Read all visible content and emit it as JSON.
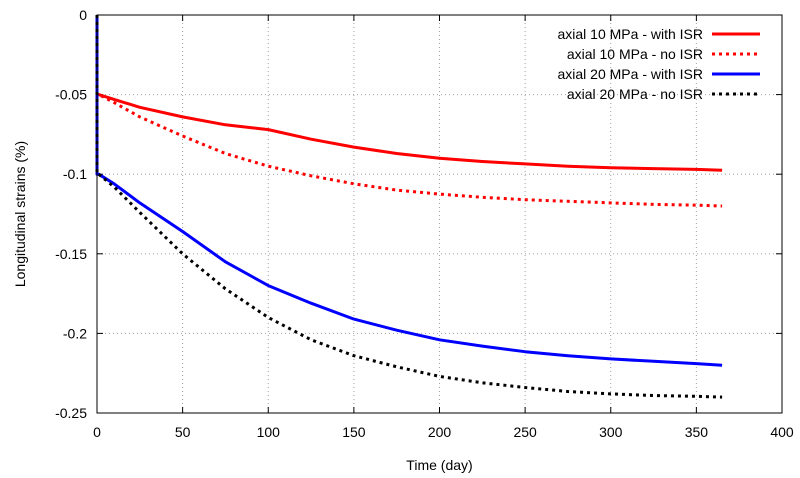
{
  "chart_data": {
    "type": "line",
    "title": "",
    "xlabel": "Time (day)",
    "ylabel": "Longitudinal strains (%)",
    "xlim": [
      0,
      400
    ],
    "ylim": [
      -0.25,
      0
    ],
    "xticks": [
      0,
      50,
      100,
      150,
      200,
      250,
      300,
      350,
      400
    ],
    "yticks": [
      0,
      -0.05,
      -0.1,
      -0.15,
      -0.2,
      -0.25
    ],
    "xtick_labels": [
      "0",
      "50",
      "100",
      "150",
      "200",
      "250",
      "300",
      "350",
      "400"
    ],
    "ytick_labels": [
      "0",
      "-0.05",
      "-0.1",
      "-0.15",
      "-0.2",
      "-0.25"
    ],
    "grid": true,
    "legend_position": "top-right",
    "series": [
      {
        "name": "axial 10 MPa - with ISR",
        "color": "#ff0000",
        "style": "solid",
        "x": [
          0,
          0,
          1,
          10,
          25,
          50,
          75,
          100,
          125,
          150,
          175,
          200,
          225,
          250,
          275,
          300,
          325,
          350,
          365
        ],
        "y": [
          0,
          -0.05,
          -0.05,
          -0.053,
          -0.058,
          -0.064,
          -0.069,
          -0.072,
          -0.078,
          -0.083,
          -0.087,
          -0.09,
          -0.092,
          -0.0935,
          -0.095,
          -0.096,
          -0.0965,
          -0.097,
          -0.0975
        ]
      },
      {
        "name": "axial 10 MPa - no ISR",
        "color": "#ff0000",
        "style": "dotted",
        "x": [
          0,
          0,
          1,
          10,
          25,
          50,
          75,
          100,
          125,
          150,
          175,
          200,
          225,
          250,
          275,
          300,
          325,
          350,
          365
        ],
        "y": [
          0,
          -0.05,
          -0.05,
          -0.055,
          -0.064,
          -0.076,
          -0.087,
          -0.095,
          -0.101,
          -0.106,
          -0.11,
          -0.1125,
          -0.1145,
          -0.116,
          -0.117,
          -0.118,
          -0.119,
          -0.1195,
          -0.12
        ]
      },
      {
        "name": "axial 20 MPa - with ISR",
        "color": "#0000ff",
        "style": "solid",
        "x": [
          0,
          0,
          1,
          10,
          25,
          50,
          75,
          100,
          125,
          150,
          175,
          200,
          225,
          250,
          275,
          300,
          325,
          350,
          365
        ],
        "y": [
          0,
          -0.1,
          -0.1,
          -0.106,
          -0.118,
          -0.136,
          -0.155,
          -0.17,
          -0.181,
          -0.191,
          -0.198,
          -0.204,
          -0.208,
          -0.2115,
          -0.214,
          -0.216,
          -0.2175,
          -0.219,
          -0.22
        ]
      },
      {
        "name": "axial 20 MPa - no ISR",
        "color": "#000000",
        "style": "dotted",
        "x": [
          0,
          0,
          1,
          10,
          25,
          50,
          75,
          100,
          125,
          150,
          175,
          200,
          225,
          250,
          275,
          300,
          325,
          350,
          365
        ],
        "y": [
          0,
          -0.1,
          -0.1,
          -0.108,
          -0.124,
          -0.15,
          -0.172,
          -0.19,
          -0.204,
          -0.214,
          -0.221,
          -0.227,
          -0.231,
          -0.234,
          -0.2365,
          -0.238,
          -0.239,
          -0.2395,
          -0.24
        ]
      }
    ]
  }
}
